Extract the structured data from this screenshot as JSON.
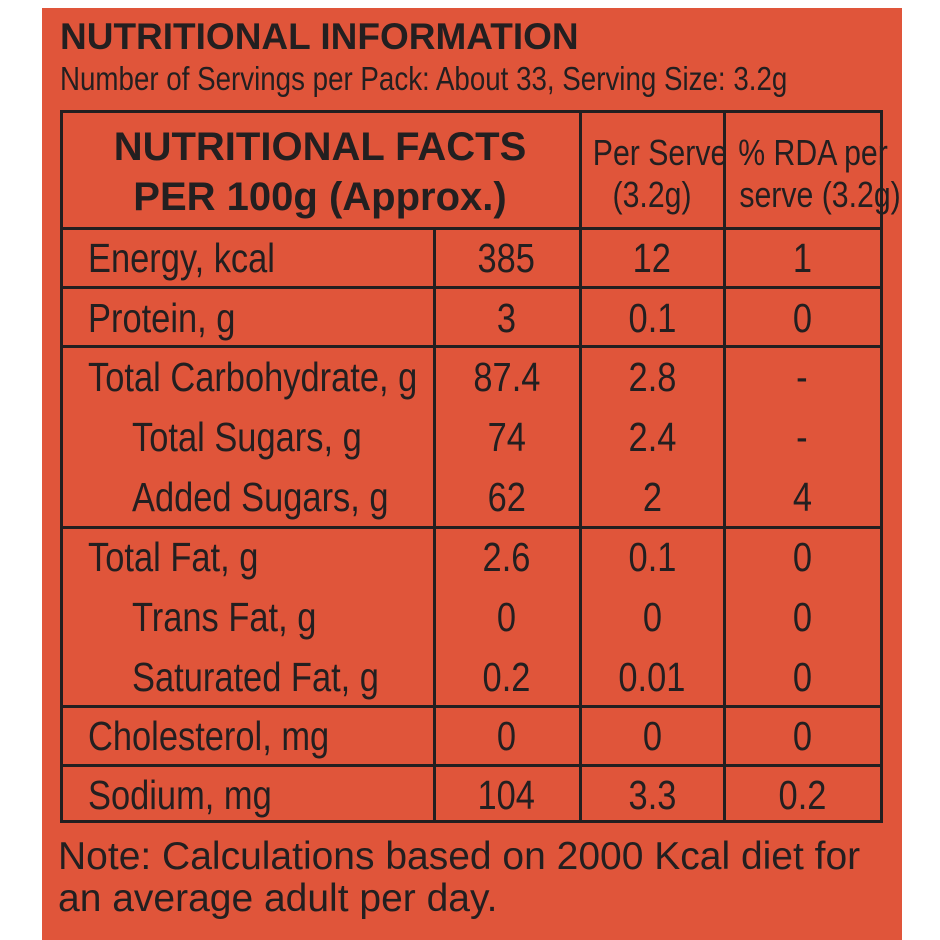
{
  "title": "NUTRITIONAL INFORMATION",
  "subtitle": "Number of Servings per Pack: About 33, Serving Size: 3.2g",
  "table": {
    "headers": {
      "facts_line1": "NUTRITIONAL FACTS",
      "facts_line2": "PER 100g (Approx.)",
      "per_serve_line1": "Per Serve",
      "per_serve_line2": "(3.2g)",
      "rda_line1": "% RDA per",
      "rda_line2": "serve (3.2g)"
    },
    "rows": [
      {
        "label": "Energy, kcal",
        "per100": "385",
        "per_serve": "12",
        "rda": "1"
      },
      {
        "label": "Protein, g",
        "per100": "3",
        "per_serve": "0.1",
        "rda": "0"
      },
      {
        "label": "Total Carbohydrate, g",
        "per100": "87.4",
        "per_serve": "2.8",
        "rda": "-"
      },
      {
        "label": "Total Sugars, g",
        "per100": "74",
        "per_serve": "2.4",
        "rda": "-"
      },
      {
        "label": "Added Sugars, g",
        "per100": "62",
        "per_serve": "2",
        "rda": "4"
      },
      {
        "label": "Total Fat, g",
        "per100": "2.6",
        "per_serve": "0.1",
        "rda": "0"
      },
      {
        "label": "Trans Fat, g",
        "per100": "0",
        "per_serve": "0",
        "rda": "0"
      },
      {
        "label": "Saturated Fat, g",
        "per100": "0.2",
        "per_serve": "0.01",
        "rda": "0"
      },
      {
        "label": "Cholesterol, mg",
        "per100": "0",
        "per_serve": "0",
        "rda": "0"
      },
      {
        "label": "Sodium, mg",
        "per100": "104",
        "per_serve": "3.3",
        "rda": "0.2"
      }
    ]
  },
  "note": "Note: Calculations based on 2000 Kcal diet for an average adult per day.",
  "colors": {
    "background": "#e0553a",
    "text": "#231f20"
  }
}
